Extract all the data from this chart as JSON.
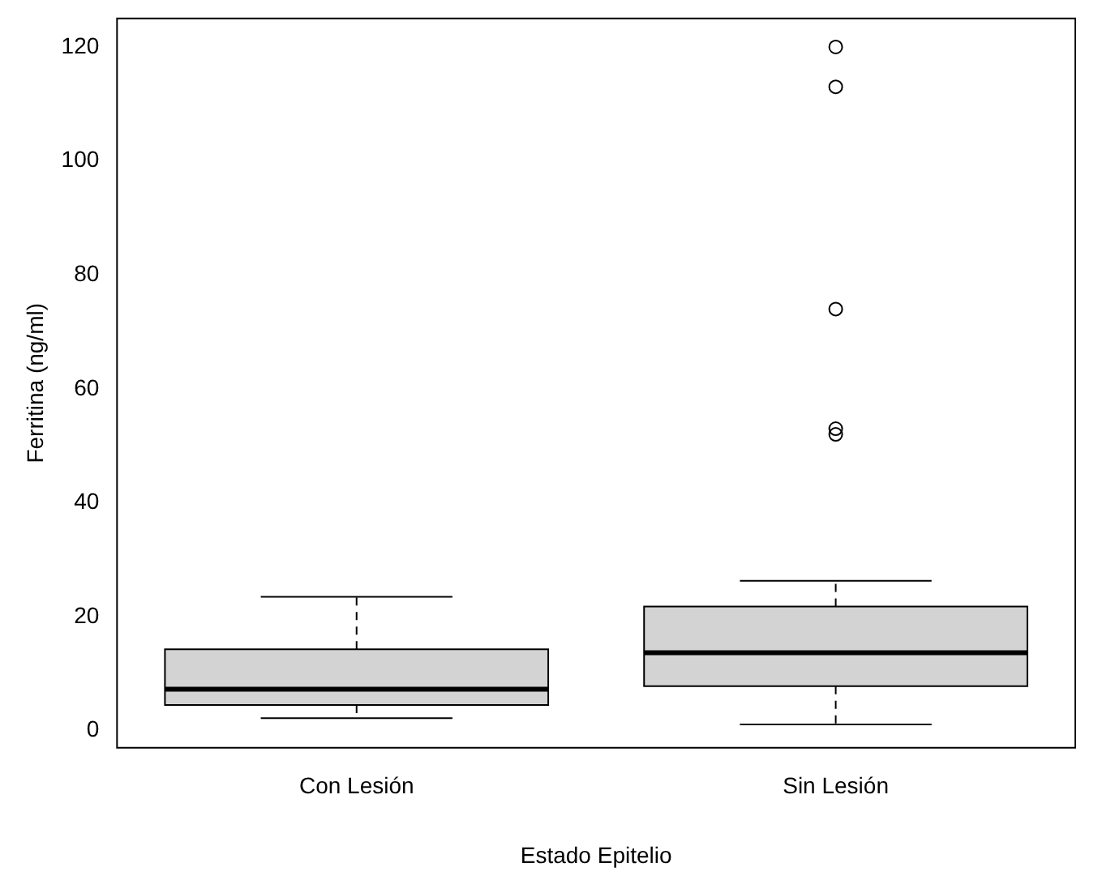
{
  "chart_data": {
    "type": "box",
    "xlabel": "Estado Epitelio",
    "ylabel": "Ferritina (ng/ml)",
    "categories": [
      "Con Lesión",
      "Sin Lesión"
    ],
    "boxes": [
      {
        "low": 2.2,
        "q1": 4.5,
        "median": 7.3,
        "q3": 14.3,
        "high": 23.5
      },
      {
        "low": 1.1,
        "q1": 7.8,
        "median": 13.7,
        "q3": 21.8,
        "high": 26.3,
        "outliers": [
          52,
          53,
          74,
          113,
          120
        ]
      }
    ],
    "color": "#d3d3d3",
    "ylim": [
      -3,
      125
    ],
    "yticks": [
      0,
      20,
      40,
      60,
      80,
      100,
      120
    ],
    "grid": false,
    "legend": false
  }
}
